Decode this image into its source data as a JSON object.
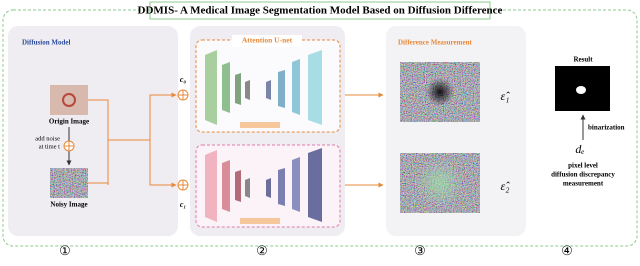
{
  "header": {
    "title": "DDMIS- A Medical Image Segmentation Model Based on Diffusion Difference"
  },
  "diffusion": {
    "title": "Diffusion Model",
    "origin": "Origin Image",
    "noise": [
      "add noise",
      "at time t"
    ],
    "noisy": "Noisy Image"
  },
  "unet": {
    "title": "Attention U-net",
    "conditions": [
      "c₀",
      "c₁"
    ]
  },
  "measurement": {
    "title": "Difference Measurement",
    "outputs": [
      "ε̂₁",
      "ε̂₂"
    ]
  },
  "result": {
    "title": "Result",
    "operation": "binarization",
    "metric": "dₑ",
    "description": [
      "pixel level",
      "diffusion discrepancy",
      "measurement"
    ]
  },
  "steps": [
    "①",
    "②",
    "③",
    "④"
  ]
}
